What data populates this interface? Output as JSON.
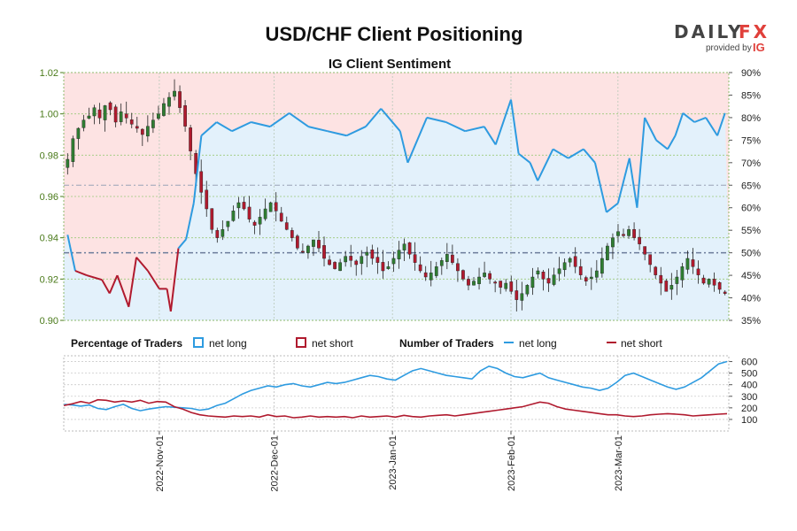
{
  "header": {
    "title": "USD/CHF Client Positioning",
    "subtitle": "IG Client Sentiment"
  },
  "logo": {
    "brand_left": "DAILY",
    "brand_right": "FX",
    "provided_by": "provided by",
    "provider": "IG"
  },
  "legend": {
    "percentage_label": "Percentage of Traders",
    "pct_long": "net long",
    "pct_short": "net short",
    "number_label": "Number of Traders",
    "num_long": "net long",
    "num_short": "net short",
    "color_long": "#2e9be0",
    "color_short": "#b01a2e"
  },
  "chart_data": [
    {
      "type": "candlestick",
      "title": "USD/CHF Client Positioning",
      "subtitle": "IG Client Sentiment",
      "ylim": [
        0.9,
        1.02
      ],
      "yticks": [
        "0.90",
        "0.92",
        "0.94",
        "0.96",
        "0.98",
        "1.00",
        "1.02"
      ],
      "ylim_right": [
        35,
        90
      ],
      "yticks_right": [
        "35%",
        "40%",
        "45%",
        "50%",
        "55%",
        "60%",
        "65%",
        "70%",
        "75%",
        "80%",
        "85%",
        "90%"
      ],
      "reference_levels_pct": [
        50,
        65
      ],
      "up_color": "#2f7d32",
      "down_color": "#b01a2e",
      "close_series": [
        0.978,
        0.988,
        0.993,
        0.997,
        0.999,
        1.003,
        0.998,
        1.004,
        1.002,
        0.996,
        1.001,
        0.998,
        0.995,
        0.993,
        0.99,
        0.994,
        0.997,
        1.0,
        1.005,
        1.008,
        1.011,
        1.003,
        0.994,
        0.982,
        0.971,
        0.962,
        0.954,
        0.944,
        0.94,
        0.944,
        0.948,
        0.953,
        0.957,
        0.954,
        0.949,
        0.946,
        0.95,
        0.954,
        0.957,
        0.953,
        0.948,
        0.944,
        0.94,
        0.935,
        0.933,
        0.936,
        0.939,
        0.935,
        0.93,
        0.927,
        0.925,
        0.928,
        0.931,
        0.929,
        0.927,
        0.931,
        0.933,
        0.93,
        0.928,
        0.924,
        0.926,
        0.93,
        0.934,
        0.937,
        0.932,
        0.928,
        0.924,
        0.921,
        0.923,
        0.926,
        0.929,
        0.932,
        0.928,
        0.924,
        0.92,
        0.917,
        0.919,
        0.921,
        0.923,
        0.92,
        0.918,
        0.916,
        0.918,
        0.914,
        0.91,
        0.913,
        0.917,
        0.921,
        0.924,
        0.92,
        0.918,
        0.922,
        0.925,
        0.928,
        0.93,
        0.926,
        0.922,
        0.919,
        0.921,
        0.924,
        0.93,
        0.936,
        0.94,
        0.943,
        0.941,
        0.944,
        0.94,
        0.937,
        0.932,
        0.927,
        0.922,
        0.918,
        0.914,
        0.917,
        0.921,
        0.926,
        0.93,
        0.926,
        0.922,
        0.918,
        0.92,
        0.917,
        0.915,
        0.913
      ],
      "percentage_net_long": [
        {
          "date": "2022-10-08",
          "value": 54
        },
        {
          "date": "2022-10-10",
          "value": 46
        },
        {
          "date": "2022-10-13",
          "value": 45
        },
        {
          "date": "2022-10-17",
          "value": 44
        },
        {
          "date": "2022-10-19",
          "value": 41
        },
        {
          "date": "2022-10-21",
          "value": 45
        },
        {
          "date": "2022-10-24",
          "value": 38
        },
        {
          "date": "2022-10-26",
          "value": 49
        },
        {
          "date": "2022-10-29",
          "value": 46
        },
        {
          "date": "2022-11-01",
          "value": 42
        },
        {
          "date": "2022-11-03",
          "value": 42
        },
        {
          "date": "2022-11-04",
          "value": 37
        },
        {
          "date": "2022-11-06",
          "value": 51
        },
        {
          "date": "2022-11-08",
          "value": 53
        },
        {
          "date": "2022-11-10",
          "value": 61
        },
        {
          "date": "2022-11-12",
          "value": 76
        },
        {
          "date": "2022-11-16",
          "value": 79
        },
        {
          "date": "2022-11-20",
          "value": 77
        },
        {
          "date": "2022-11-25",
          "value": 79
        },
        {
          "date": "2022-11-30",
          "value": 78
        },
        {
          "date": "2022-12-05",
          "value": 81
        },
        {
          "date": "2022-12-10",
          "value": 78
        },
        {
          "date": "2022-12-15",
          "value": 77
        },
        {
          "date": "2022-12-20",
          "value": 76
        },
        {
          "date": "2022-12-25",
          "value": 78
        },
        {
          "date": "2022-12-29",
          "value": 82
        },
        {
          "date": "2023-01-03",
          "value": 77
        },
        {
          "date": "2023-01-05",
          "value": 70
        },
        {
          "date": "2023-01-10",
          "value": 80
        },
        {
          "date": "2023-01-15",
          "value": 79
        },
        {
          "date": "2023-01-20",
          "value": 77
        },
        {
          "date": "2023-01-25",
          "value": 78
        },
        {
          "date": "2023-01-28",
          "value": 74
        },
        {
          "date": "2023-02-01",
          "value": 84
        },
        {
          "date": "2023-02-03",
          "value": 72
        },
        {
          "date": "2023-02-06",
          "value": 70
        },
        {
          "date": "2023-02-08",
          "value": 66
        },
        {
          "date": "2023-02-12",
          "value": 73
        },
        {
          "date": "2023-02-16",
          "value": 71
        },
        {
          "date": "2023-02-20",
          "value": 73
        },
        {
          "date": "2023-02-23",
          "value": 70
        },
        {
          "date": "2023-02-26",
          "value": 59
        },
        {
          "date": "2023-03-01",
          "value": 61
        },
        {
          "date": "2023-03-04",
          "value": 71
        },
        {
          "date": "2023-03-06",
          "value": 60
        },
        {
          "date": "2023-03-08",
          "value": 80
        },
        {
          "date": "2023-03-11",
          "value": 75
        },
        {
          "date": "2023-03-14",
          "value": 73
        },
        {
          "date": "2023-03-16",
          "value": 76
        },
        {
          "date": "2023-03-18",
          "value": 81
        },
        {
          "date": "2023-03-21",
          "value": 79
        },
        {
          "date": "2023-03-24",
          "value": 80
        },
        {
          "date": "2023-03-27",
          "value": 76
        },
        {
          "date": "2023-03-29",
          "value": 81
        }
      ],
      "x_tick_labels": [
        "2022-Nov-01",
        "2022-Dec-01",
        "2023-Jan-01",
        "2023-Feb-01",
        "2023-Mar-01"
      ],
      "grid": true
    },
    {
      "type": "line",
      "title": "Number of Traders",
      "ylim": [
        0,
        650
      ],
      "yticks": [
        "100",
        "200",
        "300",
        "400",
        "500",
        "600"
      ],
      "x_tick_labels": [
        "2022-Nov-01",
        "2022-Dec-01",
        "2023-Jan-01",
        "2023-Feb-01",
        "2023-Mar-01"
      ],
      "series": [
        {
          "name": "net long",
          "color": "#2e9be0",
          "values": [
            230,
            225,
            215,
            225,
            195,
            185,
            210,
            230,
            195,
            175,
            190,
            200,
            210,
            205,
            200,
            195,
            180,
            190,
            220,
            240,
            280,
            320,
            350,
            370,
            390,
            380,
            400,
            410,
            390,
            380,
            400,
            420,
            410,
            420,
            440,
            460,
            480,
            470,
            450,
            440,
            480,
            520,
            540,
            520,
            500,
            480,
            470,
            460,
            450,
            520,
            560,
            540,
            500,
            470,
            460,
            480,
            500,
            460,
            440,
            420,
            400,
            380,
            370,
            350,
            370,
            420,
            480,
            500,
            470,
            440,
            410,
            380,
            360,
            380,
            420,
            460,
            520,
            580,
            600
          ]
        },
        {
          "name": "net short",
          "color": "#b01a2e",
          "values": [
            220,
            235,
            255,
            240,
            270,
            265,
            250,
            260,
            250,
            265,
            240,
            255,
            250,
            210,
            190,
            160,
            140,
            130,
            125,
            120,
            130,
            125,
            130,
            120,
            140,
            125,
            130,
            115,
            120,
            130,
            120,
            125,
            120,
            125,
            115,
            130,
            120,
            125,
            130,
            120,
            135,
            125,
            120,
            130,
            135,
            140,
            130,
            140,
            150,
            160,
            170,
            180,
            190,
            200,
            210,
            230,
            250,
            240,
            210,
            190,
            180,
            170,
            160,
            150,
            140,
            140,
            130,
            125,
            130,
            140,
            145,
            150,
            145,
            140,
            130,
            135,
            140,
            145,
            150
          ]
        }
      ]
    }
  ]
}
